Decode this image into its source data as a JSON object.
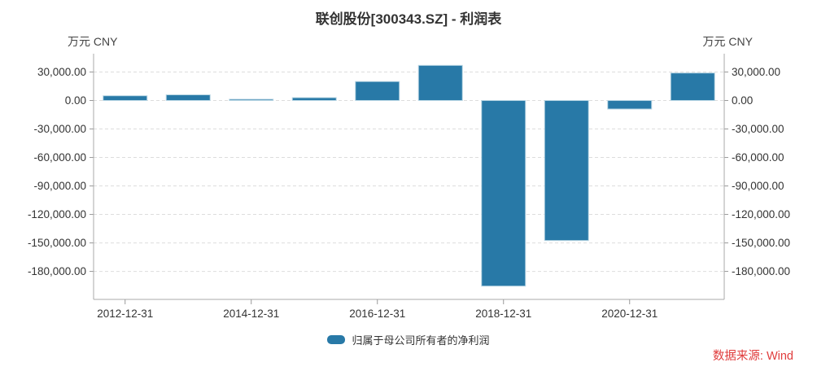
{
  "title": "联创股份[300343.SZ] - 利润表",
  "axis_unit_left": "万元 CNY",
  "axis_unit_right": "万元 CNY",
  "legend": {
    "label": "归属于母公司所有者的净利润"
  },
  "source": "数据来源: Wind",
  "colors": {
    "bar": "#2879a7",
    "bar_edge": "#b9d6e4",
    "grid": "#dddddd",
    "axis": "#aaaaaa",
    "tick": "#999999",
    "text": "#333333",
    "source_text": "#e03c3c"
  },
  "chart_data": {
    "type": "bar",
    "title": "联创股份[300343.SZ] - 利润表",
    "unit": "万元 CNY",
    "xlabel": "",
    "ylabel": "万元 CNY",
    "grid": "horizontal dashed",
    "legend_position": "bottom center",
    "categories": [
      "2012-12-31",
      "2013-12-31",
      "2014-12-31",
      "2015-12-31",
      "2016-12-31",
      "2017-12-31",
      "2018-12-31",
      "2019-12-31",
      "2020-12-31",
      "2021-12-31"
    ],
    "series": [
      {
        "name": "归属于母公司所有者的净利润",
        "values": [
          5000,
          6000,
          1300,
          3000,
          20000,
          37000,
          -195500,
          -147500,
          -9000,
          29000
        ]
      }
    ],
    "x_ticks": [
      {
        "index": 0,
        "label": "2012-12-31"
      },
      {
        "index": 2,
        "label": "2014-12-31"
      },
      {
        "index": 4,
        "label": "2016-12-31"
      },
      {
        "index": 6,
        "label": "2018-12-31"
      },
      {
        "index": 8,
        "label": "2020-12-31"
      }
    ],
    "y_ticks": [
      {
        "value": 30000,
        "label": "30,000.00"
      },
      {
        "value": 0,
        "label": "0.00"
      },
      {
        "value": -30000,
        "label": "-30,000.00"
      },
      {
        "value": -60000,
        "label": "-60,000.00"
      },
      {
        "value": -90000,
        "label": "-90,000.00"
      },
      {
        "value": -120000,
        "label": "-120,000.00"
      },
      {
        "value": -150000,
        "label": "-150,000.00"
      },
      {
        "value": -180000,
        "label": "-180,000.00"
      }
    ],
    "ylim": [
      -209500,
      49300
    ]
  }
}
